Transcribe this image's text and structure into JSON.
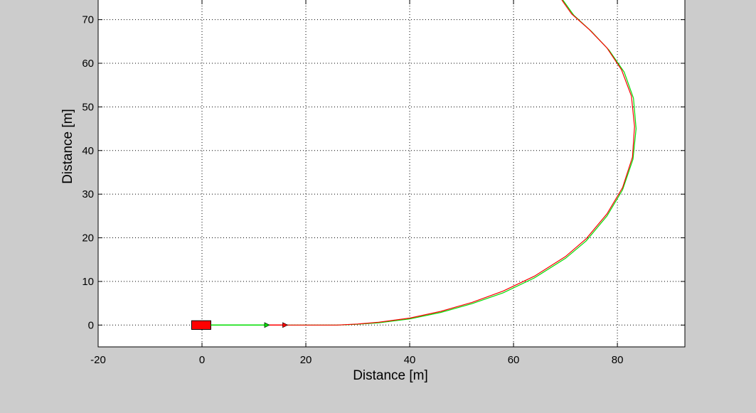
{
  "chart_data": {
    "type": "line",
    "xlabel": "Distance [m]",
    "ylabel": "Distance [m]",
    "xlim": [
      -20,
      93
    ],
    "ylim": [
      -5,
      74.5
    ],
    "x_ticks": [
      -20,
      0,
      20,
      40,
      60,
      80
    ],
    "y_ticks": [
      0,
      10,
      20,
      30,
      40,
      50,
      60,
      70
    ],
    "grid": true,
    "series": [
      {
        "color": "#00dd00",
        "points": [
          [
            13,
            0
          ],
          [
            20,
            0
          ],
          [
            26,
            0
          ],
          [
            30,
            0.2
          ],
          [
            34,
            0.5
          ],
          [
            40,
            1.4
          ],
          [
            46,
            2.9
          ],
          [
            52,
            4.9
          ],
          [
            58,
            7.4
          ],
          [
            64,
            10.8
          ],
          [
            70,
            15.3
          ],
          [
            74,
            19.3
          ],
          [
            78,
            25.0
          ],
          [
            81,
            31.0
          ],
          [
            83,
            38.0
          ],
          [
            83.6,
            45.0
          ],
          [
            83.1,
            52.0
          ],
          [
            81.3,
            58.0
          ],
          [
            78.4,
            63.0
          ],
          [
            75.0,
            67.3
          ],
          [
            71.6,
            71.0
          ],
          [
            69.5,
            74.5
          ]
        ]
      },
      {
        "color": "#ff0000",
        "points": [
          [
            16,
            0
          ],
          [
            20,
            0
          ],
          [
            26,
            0
          ],
          [
            30,
            0.25
          ],
          [
            34,
            0.65
          ],
          [
            40,
            1.6
          ],
          [
            46,
            3.15
          ],
          [
            52,
            5.2
          ],
          [
            58,
            7.8
          ],
          [
            64,
            11.2
          ],
          [
            70,
            15.7
          ],
          [
            74,
            19.8
          ],
          [
            78,
            25.5
          ],
          [
            81,
            31.5
          ],
          [
            82.9,
            38.5
          ],
          [
            83.3,
            45.5
          ],
          [
            82.7,
            52.5
          ],
          [
            80.8,
            58.5
          ],
          [
            78.0,
            63.5
          ],
          [
            74.6,
            67.7
          ],
          [
            71.2,
            71.3
          ],
          [
            69.3,
            74.5
          ]
        ]
      }
    ],
    "markers": [
      {
        "shape": "rectangle",
        "color": "#ff0000",
        "x": [
          -2,
          1.7
        ],
        "y": [
          -1.0,
          1.0
        ]
      },
      {
        "shape": "arrow",
        "color": "#00dd00",
        "from": [
          1.7,
          0
        ],
        "to": [
          13,
          0
        ]
      },
      {
        "shape": "arrow",
        "color": "#ff0000",
        "from": [
          13,
          0
        ],
        "to": [
          16.5,
          0
        ]
      }
    ]
  }
}
